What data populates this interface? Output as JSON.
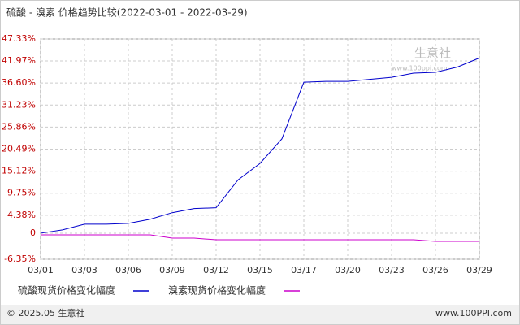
{
  "chart_data": {
    "type": "line",
    "title": "硫酸 - 溴素 价格趋势比较(2022-03-01 - 2022-03-29)",
    "categories": [
      "03/01",
      null,
      "03/03",
      null,
      "03/06",
      null,
      "03/09",
      null,
      "03/12",
      null,
      "03/15",
      null,
      "03/17",
      null,
      "03/20",
      null,
      "03/23",
      null,
      "03/26",
      null,
      "03/29"
    ],
    "series": [
      {
        "name": "硫酸现货价格变化幅度",
        "color": "#0000cc",
        "values": [
          0,
          0.8,
          2.2,
          2.2,
          2.4,
          3.4,
          5.0,
          6.0,
          6.2,
          13.0,
          17.0,
          23.0,
          36.8,
          37.0,
          37.0,
          37.5,
          38.0,
          39.0,
          39.2,
          40.5,
          42.7
        ]
      },
      {
        "name": "溴素现货价格变化幅度",
        "color": "#cc00cc",
        "values": [
          -0.4,
          -0.4,
          -0.4,
          -0.4,
          -0.4,
          -0.4,
          -1.2,
          -1.2,
          -1.6,
          -1.6,
          -1.6,
          -1.6,
          -1.6,
          -1.6,
          -1.6,
          -1.6,
          -1.6,
          -1.6,
          -2.0,
          -2.0,
          -2.0
        ]
      }
    ],
    "ylim": [
      -6.35,
      47.33
    ],
    "yticks": [
      {
        "value": -6.35,
        "label": "-6.35%"
      },
      0,
      {
        "value": 4.38,
        "label": "4.38%"
      },
      {
        "value": 9.75,
        "label": "9.75%"
      },
      {
        "value": 15.12,
        "label": "15.12%"
      },
      {
        "value": 20.49,
        "label": "20.49%"
      },
      {
        "value": 25.86,
        "label": "25.86%"
      },
      {
        "value": 31.23,
        "label": "31.23%"
      },
      {
        "value": 36.6,
        "label": "36.60%"
      },
      {
        "value": 41.97,
        "label": "41.97%"
      },
      {
        "value": 47.33,
        "label": "47.33%"
      }
    ],
    "grid": true,
    "watermark": "生意社",
    "watermark_url": "www.100ppi.com",
    "footer_left": "© 2025.05 生意社",
    "footer_right": "www.100PPI.com"
  }
}
